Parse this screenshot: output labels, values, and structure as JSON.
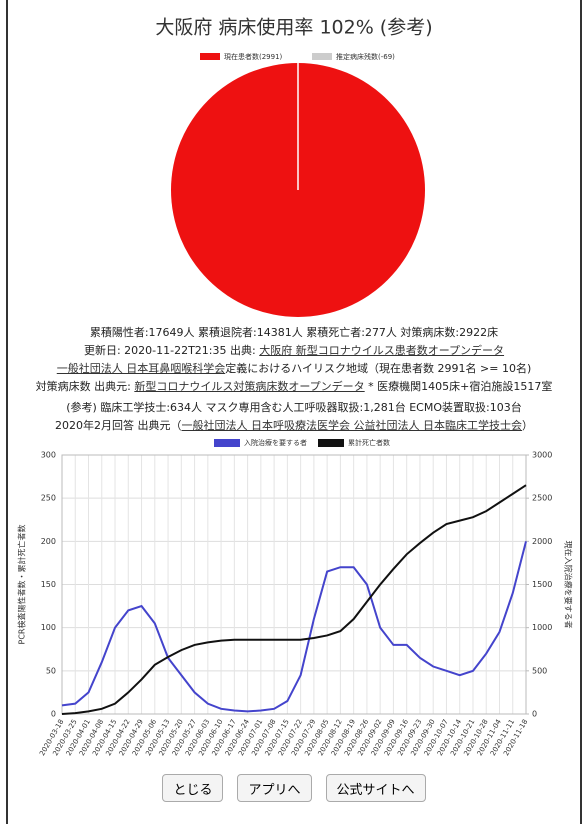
{
  "chart_data": [
    {
      "type": "pie",
      "title": "大阪府 病床使用率 102% (参考)",
      "categories": [
        "現在患者数(2991)",
        "推定病床残数(-69)"
      ],
      "values": [
        2991,
        -69
      ],
      "colors": [
        "#ee1111",
        "#cccccc"
      ]
    },
    {
      "type": "line",
      "y_label": "PCR検査陽性者数・累計死亡者数",
      "y2_label": "現在入院治療を要する者",
      "categories": [
        "2020-03-18",
        "2020-03-25",
        "2020-04-01",
        "2020-04-08",
        "2020-04-15",
        "2020-04-22",
        "2020-04-29",
        "2020-05-06",
        "2020-05-13",
        "2020-05-20",
        "2020-05-27",
        "2020-06-03",
        "2020-06-10",
        "2020-06-17",
        "2020-06-24",
        "2020-07-01",
        "2020-07-08",
        "2020-07-15",
        "2020-07-22",
        "2020-07-29",
        "2020-08-05",
        "2020-08-12",
        "2020-08-19",
        "2020-08-26",
        "2020-09-02",
        "2020-09-09",
        "2020-09-16",
        "2020-09-23",
        "2020-09-30",
        "2020-10-07",
        "2020-10-14",
        "2020-10-21",
        "2020-10-28",
        "2020-11-04",
        "2020-11-11",
        "2020-11-18"
      ],
      "series": [
        {
          "name": "入院治療を要する者",
          "color": "#4444cc",
          "axis": "y2",
          "values": [
            100,
            120,
            250,
            600,
            1000,
            1200,
            1250,
            1050,
            650,
            450,
            250,
            120,
            60,
            40,
            30,
            40,
            60,
            150,
            450,
            1100,
            1650,
            1700,
            1700,
            1500,
            1000,
            800,
            800,
            650,
            550,
            500,
            450,
            500,
            700,
            950,
            1400,
            2000
          ]
        },
        {
          "name": "累計死亡者数",
          "color": "#111111",
          "values": [
            0,
            1,
            3,
            6,
            12,
            25,
            40,
            57,
            66,
            74,
            80,
            83,
            85,
            86,
            86,
            86,
            86,
            86,
            86,
            88,
            91,
            96,
            110,
            130,
            150,
            168,
            185,
            198,
            210,
            220,
            224,
            228,
            235,
            245,
            255,
            265
          ]
        }
      ],
      "ylim": [
        0,
        300
      ],
      "yticks": [
        0,
        50,
        100,
        150,
        200,
        250,
        300
      ],
      "y2lim": [
        0,
        3000
      ],
      "y2ticks": [
        0,
        500,
        1000,
        1500,
        2000,
        2500,
        3000
      ],
      "grid": true
    }
  ],
  "info": [
    [
      {
        "text": "累積陽性者:17649人 累積退院者:14381人 累積死亡者:277人 対策病床数:2922床"
      }
    ],
    [
      {
        "text": "更新日: 2020-11-22T21:35 出典: "
      },
      {
        "link": "大阪府 新型コロナウイルス患者数オープンデータ"
      }
    ],
    [
      {
        "link": "一般社団法人 日本耳鼻咽喉科学会"
      },
      {
        "text": "定義におけるハイリスク地域（現在患者数 2991名 >= 10名)"
      }
    ],
    [
      {
        "text": "対策病床数 出典元: "
      },
      {
        "link": "新型コロナウイルス対策病床数オープンデータ"
      },
      {
        "text": " * 医療機関1405床+宿泊施設1517室"
      }
    ],
    [
      {
        "text": "(参考) 臨床工学技士:634人 マスク専用含む人工呼吸器取扱:1,281台 ECMO装置取扱:103台"
      }
    ],
    [
      {
        "text": "2020年2月回答 出典元（"
      },
      {
        "link": "一般社団法人 日本呼吸療法医学会 公益社団法人 日本臨床工学技士会"
      },
      {
        "text": "）"
      }
    ]
  ],
  "buttons": [
    "とじる",
    "アプリへ",
    "公式サイトへ"
  ]
}
